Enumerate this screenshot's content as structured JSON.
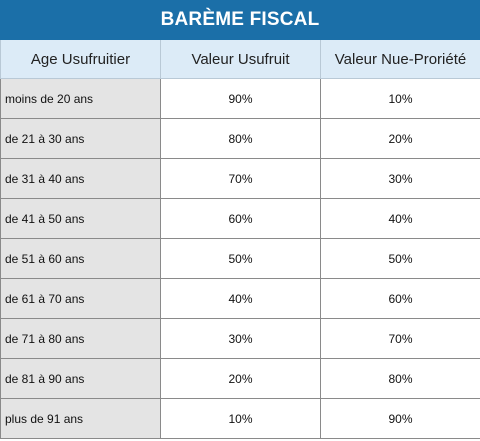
{
  "title": "BARÈME FISCAL",
  "headers": {
    "age": "Age Usufruitier",
    "usufruit": "Valeur Usufruit",
    "nue_propriete": "Valeur Nue-Proriété"
  },
  "rows": [
    {
      "age": "moins de 20 ans",
      "usufruit": "90%",
      "nue_propriete": "10%"
    },
    {
      "age": "de 21 à 30 ans",
      "usufruit": "80%",
      "nue_propriete": "20%"
    },
    {
      "age": "de 31 à 40 ans",
      "usufruit": "70%",
      "nue_propriete": "30%"
    },
    {
      "age": "de 41 à 50 ans",
      "usufruit": "60%",
      "nue_propriete": "40%"
    },
    {
      "age": "de 51 à 60 ans",
      "usufruit": "50%",
      "nue_propriete": "50%"
    },
    {
      "age": "de 61 à 70 ans",
      "usufruit": "40%",
      "nue_propriete": "60%"
    },
    {
      "age": "de 71 à 80 ans",
      "usufruit": "30%",
      "nue_propriete": "70%"
    },
    {
      "age": "de 81 à 90 ans",
      "usufruit": "20%",
      "nue_propriete": "80%"
    },
    {
      "age": "plus de 91 ans",
      "usufruit": "10%",
      "nue_propriete": "90%"
    }
  ],
  "colors": {
    "title_background": "#1b6fa8",
    "header_background": "#dcebf7",
    "age_column_background": "#e4e4e4"
  }
}
